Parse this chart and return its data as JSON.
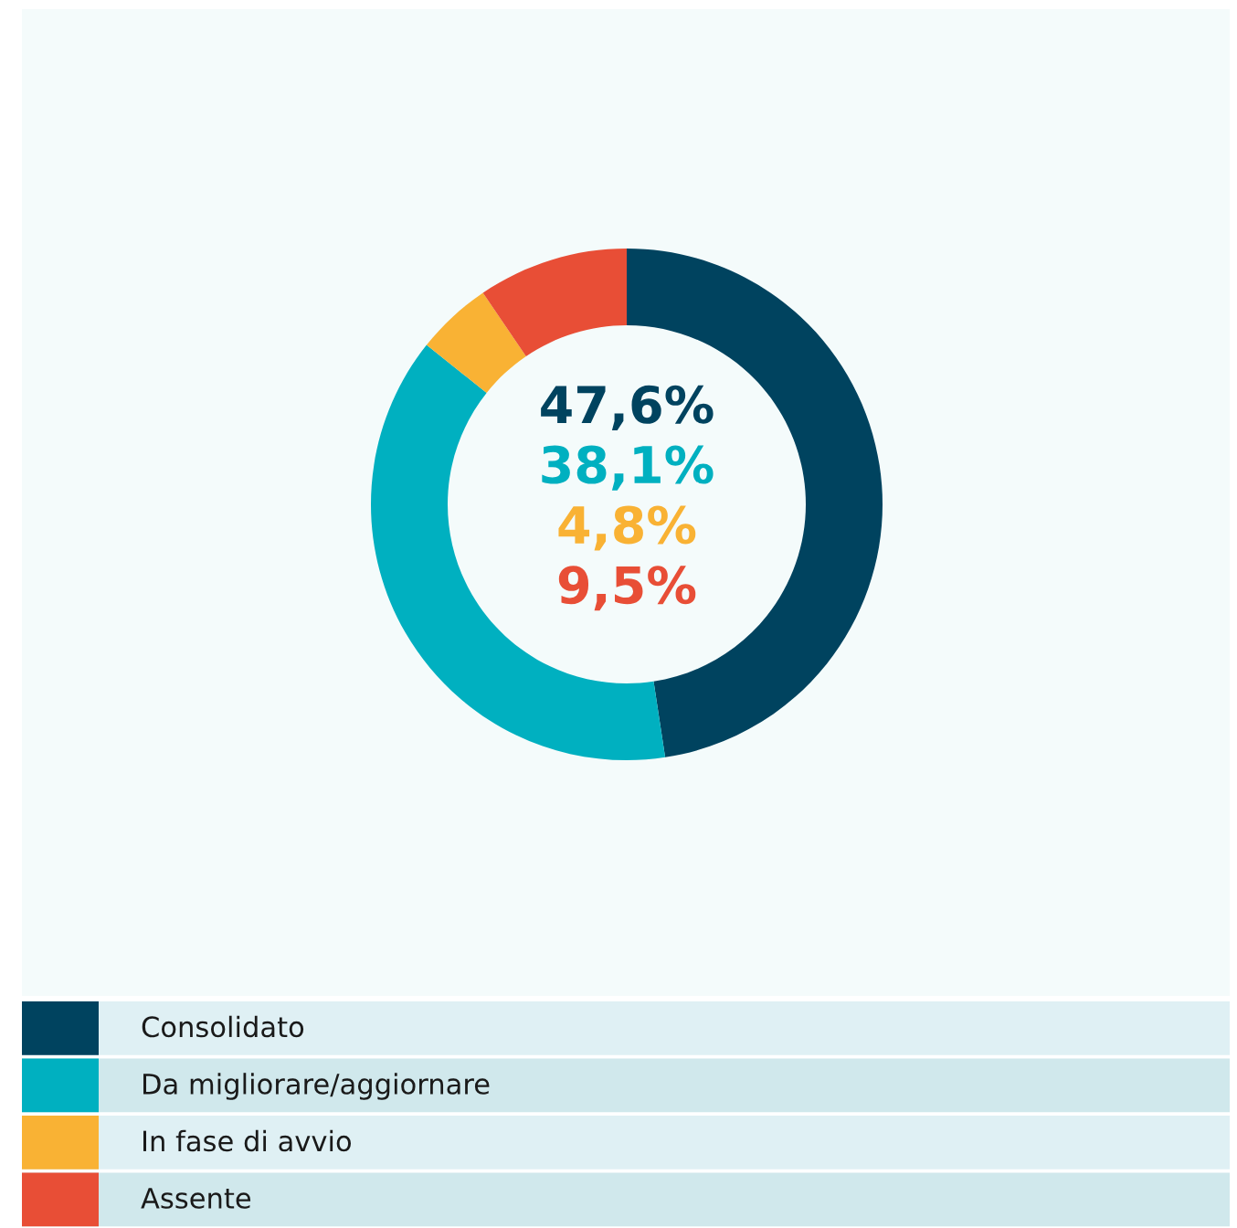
{
  "chart_data": {
    "type": "donut",
    "categories": [
      "Consolidato",
      "Da migliorare/aggiornare",
      "In fase di avvio",
      "Assente"
    ],
    "values": [
      47.6,
      38.1,
      4.8,
      9.5
    ],
    "colors": [
      "#00435f",
      "#00b0c0",
      "#f9b234",
      "#e84e36"
    ],
    "annotations": [
      "47,6%",
      "38,1%",
      "4,8%",
      "9,5%"
    ],
    "legend": "bottom"
  }
}
